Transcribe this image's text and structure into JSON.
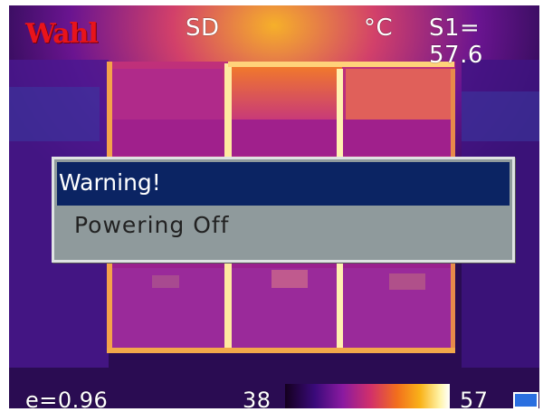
{
  "brand": "Wahl",
  "status_bar": {
    "storage": "SD",
    "unit": "°C",
    "spot_reading": "S1= 57.6"
  },
  "dialog": {
    "title": "Warning!",
    "message": "Powering Off"
  },
  "footer": {
    "emissivity": "e=0.96",
    "scale_min": "38",
    "scale_max": "57"
  },
  "colors": {
    "brand": "#e8141b",
    "dialog_title_bg": "#0b2463",
    "dialog_body_bg": "#8f9a9c",
    "battery": "#2a6fe0"
  },
  "icons": {
    "battery": "battery-icon"
  }
}
